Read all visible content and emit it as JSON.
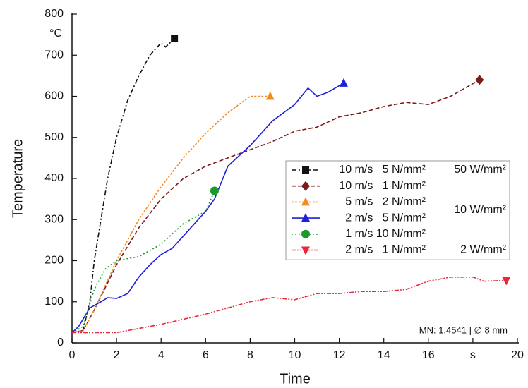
{
  "chart_data": {
    "type": "line",
    "x_label": "Time",
    "y_label": "Temperature",
    "y_unit": "°C",
    "xlim": [
      0,
      20
    ],
    "xticks": [
      0,
      2,
      4,
      6,
      8,
      10,
      12,
      14,
      16,
      {
        "value": 18,
        "label": "s"
      },
      20
    ],
    "ylim": [
      0,
      800
    ],
    "yticks": [
      0,
      100,
      200,
      300,
      400,
      500,
      600,
      700,
      800
    ],
    "legend": "upper right",
    "annotation": "MN: 1.4541 | ∅ 8 mm",
    "legend_groups": [
      {
        "label": "50 W/mm²",
        "series": [
          0
        ]
      },
      {
        "label": "10 W/mm²",
        "series": [
          1,
          2,
          3,
          4
        ]
      },
      {
        "label": "2 W/mm²",
        "series": [
          5
        ]
      }
    ],
    "series": [
      {
        "name": "10 m/s   5 N/mm²",
        "color": "#111111",
        "dash": "7 3 2 3",
        "marker": "square",
        "x": [
          0,
          0.5,
          0.8,
          1,
          1.3,
          1.6,
          2,
          2.5,
          3,
          3.5,
          4,
          4.2,
          4.6
        ],
        "values": [
          25,
          30,
          100,
          200,
          300,
          400,
          500,
          590,
          650,
          700,
          730,
          720,
          740
        ]
      },
      {
        "name": "10 m/s   1 N/mm²",
        "color": "#7a1a1a",
        "dash": "6 3",
        "marker": "diamond",
        "x": [
          0,
          0.5,
          1,
          2,
          3,
          4,
          5,
          6,
          7,
          8,
          9,
          10,
          11,
          12,
          13,
          14,
          15,
          16,
          17,
          18.3
        ],
        "values": [
          25,
          30,
          80,
          190,
          280,
          350,
          400,
          430,
          450,
          470,
          490,
          515,
          525,
          550,
          560,
          575,
          585,
          580,
          600,
          640
        ]
      },
      {
        "name": "5 m/s   2 N/mm²",
        "color": "#f08c21",
        "dash": "3 2",
        "marker": "triangle",
        "x": [
          0,
          0.5,
          1,
          2,
          3,
          4,
          5,
          6,
          7,
          8,
          8.9
        ],
        "values": [
          25,
          30,
          80,
          200,
          300,
          380,
          450,
          510,
          560,
          600,
          600
        ]
      },
      {
        "name": "2 m/s   5 N/mm²",
        "color": "#1f1fdc",
        "dash": "none",
        "marker": "triangle",
        "x": [
          0,
          0.3,
          0.8,
          1.3,
          1.6,
          2,
          2.5,
          3,
          3.5,
          4,
          4.5,
          5,
          5.5,
          6,
          6.4,
          7,
          8,
          9,
          10,
          10.6,
          11,
          11.5,
          12.2
        ],
        "values": [
          25,
          40,
          85,
          100,
          110,
          108,
          120,
          160,
          190,
          215,
          230,
          260,
          290,
          320,
          350,
          430,
          480,
          540,
          580,
          620,
          600,
          610,
          632
        ]
      },
      {
        "name": "1 m/s 10 N/mm²",
        "color": "#1a9a2a",
        "dash": "2 3",
        "marker": "circle",
        "x": [
          0,
          0.5,
          1,
          1.5,
          2,
          3,
          4,
          5,
          6,
          6.4
        ],
        "values": [
          25,
          40,
          130,
          180,
          200,
          210,
          240,
          290,
          320,
          370
        ]
      },
      {
        "name": "2 m/s   1 N/mm²",
        "color": "#e8283a",
        "dash": "6 2 2 2 2 2",
        "marker": "triangle-down",
        "x": [
          0,
          2,
          4,
          6,
          8,
          9,
          10,
          11,
          12,
          13,
          14,
          15,
          16,
          17,
          18,
          18.5,
          19.5
        ],
        "values": [
          25,
          25,
          45,
          70,
          100,
          110,
          105,
          120,
          120,
          125,
          125,
          130,
          150,
          160,
          160,
          150,
          152
        ]
      }
    ]
  }
}
